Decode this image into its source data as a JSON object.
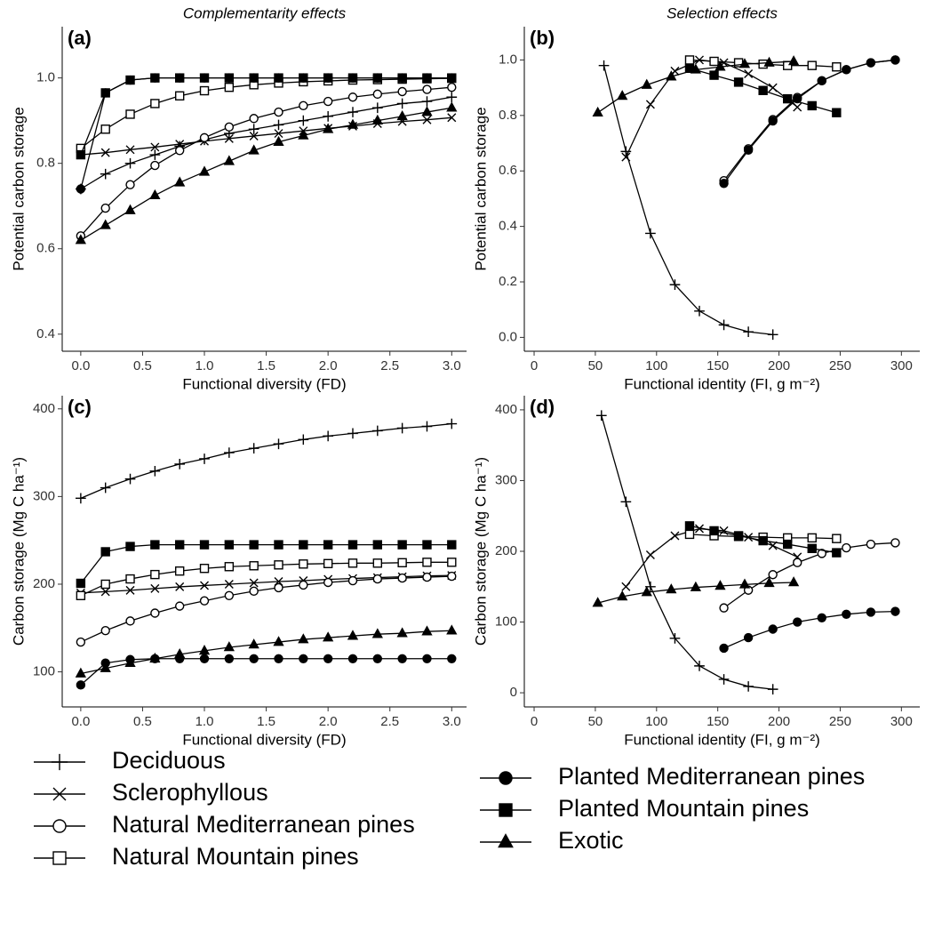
{
  "chart_data": [
    {
      "type": "line",
      "panel_label": "(a)",
      "title": "Complementarity effects",
      "x_label": "Functional diversity (FD)",
      "y_label": "Potential carbon storage",
      "xlim": [
        -0.15,
        3.12
      ],
      "ylim": [
        0.36,
        1.12
      ],
      "xticks": [
        {
          "value": 0,
          "label": "0.0"
        },
        0.5,
        {
          "value": 1,
          "label": "1.0"
        },
        1.5,
        {
          "value": 2,
          "label": "2.0"
        },
        2.5,
        {
          "value": 3,
          "label": "3.0"
        }
      ],
      "yticks": [
        0.4,
        0.6,
        0.8,
        {
          "value": 1,
          "label": "1.0"
        }
      ],
      "x": [
        0,
        0.2,
        0.4,
        0.6,
        0.8,
        1.0,
        1.2,
        1.4,
        1.6,
        1.8,
        2.0,
        2.2,
        2.4,
        2.6,
        2.8,
        3.0
      ],
      "series": [
        {
          "name": "Deciduous",
          "marker": "plus",
          "color": "#000000",
          "values": [
            0.74,
            0.775,
            0.8,
            0.82,
            0.84,
            0.855,
            0.87,
            0.88,
            0.89,
            0.9,
            0.91,
            0.92,
            0.93,
            0.94,
            0.945,
            0.955
          ]
        },
        {
          "name": "Sclerophyllous",
          "marker": "cross",
          "color": "#000000",
          "values": [
            0.82,
            0.825,
            0.832,
            0.838,
            0.845,
            0.852,
            0.858,
            0.864,
            0.87,
            0.876,
            0.882,
            0.887,
            0.893,
            0.898,
            0.902,
            0.907
          ]
        },
        {
          "name": "Natural Mediterranean pines",
          "marker": "circle-open",
          "color": "#000000",
          "values": [
            0.63,
            0.695,
            0.75,
            0.795,
            0.83,
            0.86,
            0.885,
            0.905,
            0.92,
            0.935,
            0.945,
            0.955,
            0.962,
            0.968,
            0.973,
            0.978
          ]
        },
        {
          "name": "Natural Mountain pines",
          "marker": "square-open",
          "color": "#000000",
          "values": [
            0.835,
            0.88,
            0.915,
            0.94,
            0.958,
            0.97,
            0.978,
            0.984,
            0.988,
            0.991,
            0.993,
            0.995,
            0.996,
            0.997,
            0.998,
            0.999
          ]
        },
        {
          "name": "Planted Mediterranean pines",
          "marker": "circle-filled",
          "color": "#000000",
          "values": [
            0.74,
            0.965,
            0.995,
            1.0,
            1.0,
            1.0,
            1.0,
            1.0,
            1.0,
            1.0,
            1.0,
            1.0,
            1.0,
            1.0,
            1.0,
            1.0
          ]
        },
        {
          "name": "Planted Mountain pines",
          "marker": "square-filled",
          "color": "#000000",
          "values": [
            0.82,
            0.965,
            0.995,
            1.0,
            1.0,
            1.0,
            1.0,
            1.0,
            1.0,
            1.0,
            1.0,
            1.0,
            1.0,
            1.0,
            1.0,
            1.0
          ]
        },
        {
          "name": "Exotic",
          "marker": "triangle-filled",
          "color": "#000000",
          "values": [
            0.62,
            0.655,
            0.69,
            0.725,
            0.755,
            0.78,
            0.805,
            0.83,
            0.85,
            0.865,
            0.88,
            0.89,
            0.9,
            0.91,
            0.92,
            0.93
          ]
        }
      ]
    },
    {
      "type": "line",
      "panel_label": "(b)",
      "title": "Selection effects",
      "x_label": "Functional identity (FI, g m⁻²)",
      "y_label": "Potential carbon storage",
      "xlim": [
        -8,
        315
      ],
      "ylim": [
        -0.05,
        1.12
      ],
      "xticks": [
        0,
        50,
        100,
        150,
        200,
        250,
        300
      ],
      "yticks": [
        {
          "value": 0,
          "label": "0.0"
        },
        0.2,
        0.4,
        0.6,
        0.8,
        {
          "value": 1,
          "label": "1.0"
        }
      ],
      "series": [
        {
          "marker": "plus",
          "color": "#000000",
          "x": [
            57,
            75,
            95,
            115,
            135,
            155,
            175,
            195
          ],
          "values": [
            0.98,
            0.67,
            0.375,
            0.19,
            0.095,
            0.045,
            0.02,
            0.01
          ]
        },
        {
          "marker": "cross",
          "color": "#000000",
          "x": [
            75,
            95,
            115,
            135,
            155,
            175,
            195,
            215
          ],
          "values": [
            0.65,
            0.84,
            0.96,
            1.0,
            0.99,
            0.95,
            0.9,
            0.83
          ]
        },
        {
          "marker": "circle-open",
          "color": "#000000",
          "x": [
            155,
            175,
            195,
            215,
            235,
            255,
            275,
            295
          ],
          "values": [
            0.565,
            0.68,
            0.785,
            0.865,
            0.925,
            0.965,
            0.99,
            1.0
          ]
        },
        {
          "marker": "square-open",
          "color": "#000000",
          "x": [
            127,
            147,
            167,
            187,
            207,
            227,
            247
          ],
          "values": [
            1.0,
            0.995,
            0.99,
            0.985,
            0.98,
            0.98,
            0.975
          ]
        },
        {
          "marker": "circle-filled",
          "color": "#000000",
          "x": [
            155,
            175,
            195,
            215,
            235,
            255,
            275,
            295
          ],
          "values": [
            0.555,
            0.675,
            0.78,
            0.86,
            0.925,
            0.965,
            0.99,
            1.0
          ]
        },
        {
          "marker": "square-filled",
          "color": "#000000",
          "x": [
            127,
            147,
            167,
            187,
            207,
            227,
            247
          ],
          "values": [
            0.97,
            0.945,
            0.92,
            0.89,
            0.86,
            0.835,
            0.81
          ]
        },
        {
          "marker": "triangle-filled",
          "color": "#000000",
          "x": [
            52,
            72,
            92,
            112,
            132,
            152,
            172,
            192,
            212
          ],
          "values": [
            0.81,
            0.87,
            0.91,
            0.94,
            0.965,
            0.975,
            0.985,
            0.99,
            0.995
          ]
        }
      ]
    },
    {
      "type": "line",
      "panel_label": "(c)",
      "x_label": "Functional diversity (FD)",
      "y_label": "Carbon storage (Mg C ha⁻¹)",
      "xlim": [
        -0.15,
        3.12
      ],
      "ylim": [
        60,
        415
      ],
      "xticks": [
        {
          "value": 0,
          "label": "0.0"
        },
        0.5,
        {
          "value": 1,
          "label": "1.0"
        },
        1.5,
        {
          "value": 2,
          "label": "2.0"
        },
        2.5,
        {
          "value": 3,
          "label": "3.0"
        }
      ],
      "yticks": [
        100,
        200,
        300,
        400
      ],
      "x": [
        0,
        0.2,
        0.4,
        0.6,
        0.8,
        1.0,
        1.2,
        1.4,
        1.6,
        1.8,
        2.0,
        2.2,
        2.4,
        2.6,
        2.8,
        3.0
      ],
      "series": [
        {
          "marker": "plus",
          "color": "#000000",
          "values": [
            298,
            310,
            320,
            329,
            337,
            343,
            350,
            355,
            360,
            365,
            369,
            372,
            375,
            378,
            380,
            383
          ]
        },
        {
          "marker": "cross",
          "color": "#000000",
          "values": [
            190,
            191.5,
            193,
            195,
            197,
            198.5,
            200,
            201.5,
            203,
            204,
            205.5,
            206.5,
            207.5,
            208.5,
            209.5,
            210
          ]
        },
        {
          "marker": "circle-open",
          "color": "#000000",
          "values": [
            134,
            147,
            158,
            167,
            175,
            181,
            187,
            192,
            196,
            199,
            202,
            204,
            206,
            207,
            208,
            209
          ]
        },
        {
          "marker": "square-open",
          "color": "#000000",
          "values": [
            187,
            200,
            206,
            211,
            215,
            218,
            220,
            221,
            222,
            223,
            223.5,
            224,
            224,
            224.5,
            225,
            225
          ]
        },
        {
          "marker": "circle-filled",
          "color": "#000000",
          "values": [
            85,
            110,
            114,
            115,
            115,
            115,
            115,
            115,
            115,
            115,
            115,
            115,
            115,
            115,
            115,
            115
          ]
        },
        {
          "marker": "square-filled",
          "color": "#000000",
          "values": [
            201,
            237,
            243,
            245,
            245,
            245,
            245,
            245,
            245,
            245,
            245,
            245,
            245,
            245,
            245,
            245
          ]
        },
        {
          "marker": "triangle-filled",
          "color": "#000000",
          "values": [
            98,
            104,
            110,
            115,
            120,
            124,
            128,
            131,
            134,
            137,
            139,
            141,
            143,
            144,
            146,
            147
          ]
        }
      ]
    },
    {
      "type": "line",
      "panel_label": "(d)",
      "x_label": "Functional identity (FI, g m⁻²)",
      "y_label": "Carbon storage (Mg C ha⁻¹)",
      "xlim": [
        -8,
        315
      ],
      "ylim": [
        -20,
        420
      ],
      "xticks": [
        0,
        50,
        100,
        150,
        200,
        250,
        300
      ],
      "yticks": [
        0,
        100,
        200,
        300,
        400
      ],
      "series": [
        {
          "marker": "plus",
          "color": "#000000",
          "x": [
            55,
            75,
            95,
            115,
            135,
            155,
            175,
            195
          ],
          "values": [
            392,
            270,
            150,
            77,
            38,
            19,
            9,
            5
          ]
        },
        {
          "marker": "cross",
          "color": "#000000",
          "x": [
            75,
            95,
            115,
            135,
            155,
            175,
            195,
            215
          ],
          "values": [
            150,
            195,
            222,
            232,
            229,
            220,
            208,
            192
          ]
        },
        {
          "marker": "circle-open",
          "color": "#000000",
          "x": [
            155,
            175,
            195,
            215,
            235,
            255,
            275,
            295
          ],
          "values": [
            120,
            145,
            167,
            184,
            197,
            205,
            210,
            212
          ]
        },
        {
          "marker": "square-open",
          "color": "#000000",
          "x": [
            127,
            147,
            167,
            187,
            207,
            227,
            247
          ],
          "values": [
            224,
            222,
            221,
            220,
            219,
            219,
            218
          ]
        },
        {
          "marker": "circle-filled",
          "color": "#000000",
          "x": [
            155,
            175,
            195,
            215,
            235,
            255,
            275,
            295
          ],
          "values": [
            63,
            78,
            90,
            100,
            106,
            111,
            114,
            115
          ]
        },
        {
          "marker": "square-filled",
          "color": "#000000",
          "x": [
            127,
            147,
            167,
            187,
            207,
            227,
            247
          ],
          "values": [
            236,
            229,
            222,
            215,
            210,
            204,
            198
          ]
        },
        {
          "marker": "triangle-filled",
          "color": "#000000",
          "x": [
            52,
            72,
            92,
            112,
            132,
            152,
            172,
            192,
            212
          ],
          "values": [
            127,
            136,
            142,
            146,
            149,
            151,
            153,
            155,
            156
          ]
        }
      ]
    }
  ]
}
